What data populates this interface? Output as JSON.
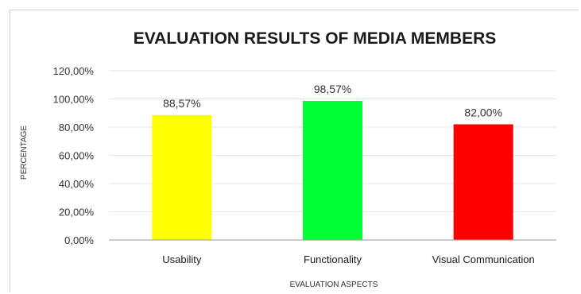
{
  "chart_data": {
    "type": "bar",
    "title": "EVALUATION RESULTS OF MEDIA MEMBERS",
    "xlabel": "EVALUATION ASPECTS",
    "ylabel": "PERCENTAGE",
    "categories": [
      "Usability",
      "Functionality",
      "Visual Communication"
    ],
    "values": [
      88.57,
      98.57,
      82.0
    ],
    "data_labels": [
      "88,57%",
      "98,57%",
      "82,00%"
    ],
    "bar_colors": [
      "#ffff00",
      "#00ff33",
      "#ff0000"
    ],
    "ylim": [
      0,
      120
    ],
    "yticks": [
      0,
      20,
      40,
      60,
      80,
      100,
      120
    ],
    "ytick_labels": [
      "0,00%",
      "20,00%",
      "40,00%",
      "60,00%",
      "80,00%",
      "100,00%",
      "120,00%"
    ],
    "grid": true,
    "legend": "none"
  }
}
